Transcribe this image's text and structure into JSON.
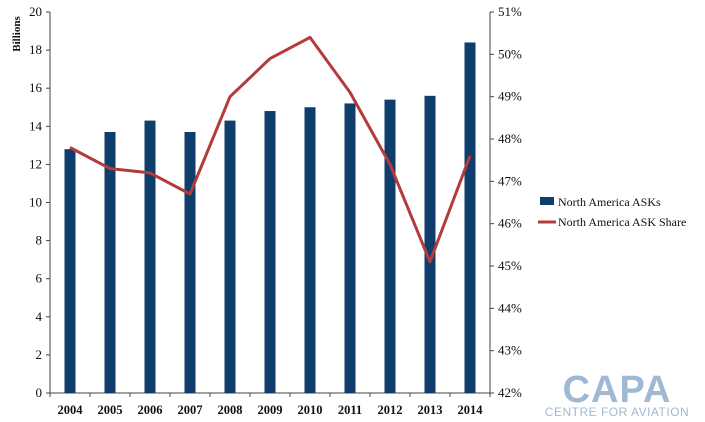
{
  "chart_data": {
    "type": "bar+line",
    "categories": [
      "2004",
      "2005",
      "2006",
      "2007",
      "2008",
      "2009",
      "2010",
      "2011",
      "2012",
      "2013",
      "2014"
    ],
    "series": [
      {
        "name": "North America ASKs",
        "type": "bar",
        "axis": "left",
        "values": [
          12.8,
          13.7,
          14.3,
          13.7,
          14.3,
          14.8,
          15.0,
          15.2,
          15.4,
          15.6,
          18.4
        ]
      },
      {
        "name": "North America ASK Share",
        "type": "line",
        "axis": "right",
        "values": [
          47.8,
          47.3,
          47.2,
          46.7,
          49.0,
          49.9,
          50.4,
          49.1,
          47.4,
          45.1,
          47.6
        ]
      }
    ],
    "ylabel": "Billions",
    "ylim": [
      0,
      20
    ],
    "yticks": [
      "0",
      "2",
      "4",
      "6",
      "8",
      "10",
      "12",
      "14",
      "16",
      "18",
      "20"
    ],
    "y2lim": [
      42,
      51
    ],
    "y2ticks": [
      "42%",
      "43%",
      "44%",
      "45%",
      "46%",
      "47%",
      "48%",
      "49%",
      "50%",
      "51%"
    ],
    "grid": false,
    "legend_position": "right",
    "colors": {
      "bars": "#0f3e6d",
      "line": "#b33b3b"
    }
  },
  "logo": {
    "main": "CAPA",
    "sub": "CENTRE FOR AVIATION"
  }
}
